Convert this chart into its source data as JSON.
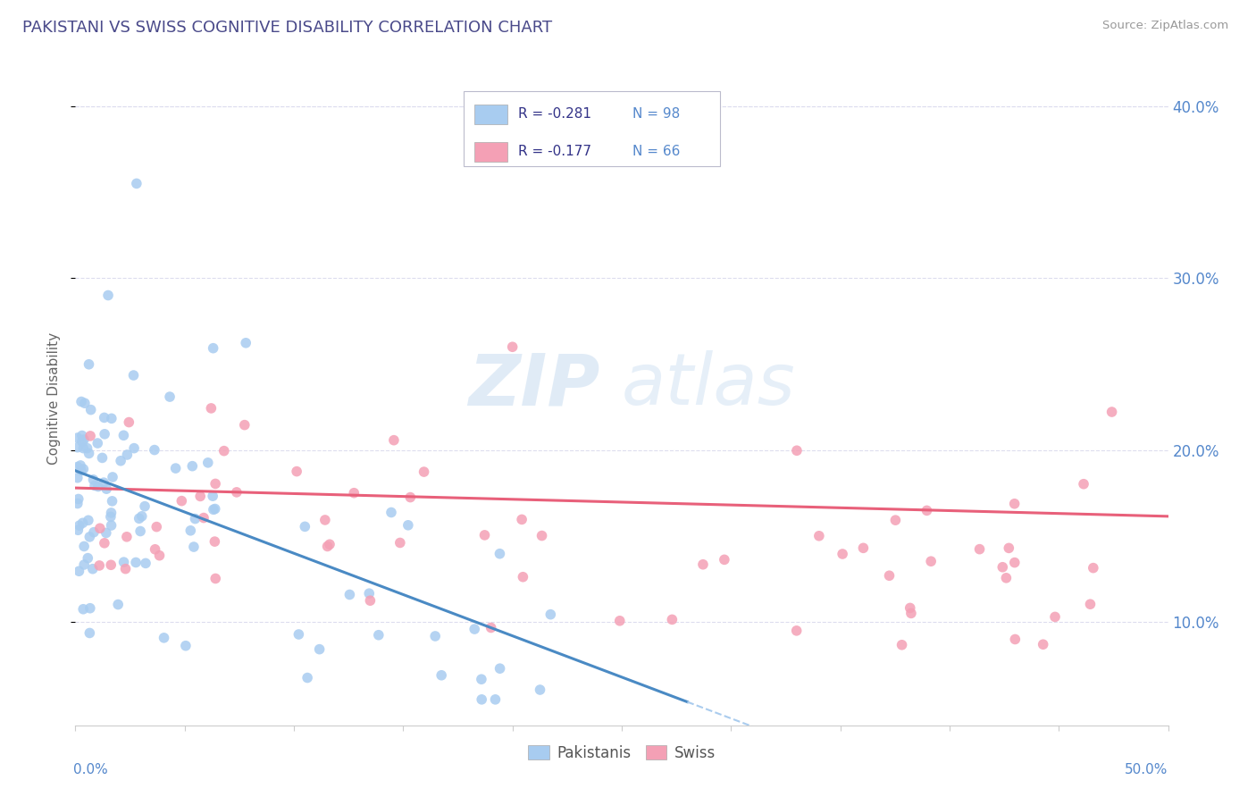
{
  "title": "PAKISTANI VS SWISS COGNITIVE DISABILITY CORRELATION CHART",
  "source": "Source: ZipAtlas.com",
  "ylabel": "Cognitive Disability",
  "r_pakistani": -0.281,
  "n_pakistani": 98,
  "r_swiss": -0.177,
  "n_swiss": 66,
  "xlim": [
    0.0,
    0.5
  ],
  "ylim": [
    0.04,
    0.42
  ],
  "right_yticks": [
    0.1,
    0.2,
    0.3,
    0.4
  ],
  "right_yticklabels": [
    "10.0%",
    "20.0%",
    "30.0%",
    "40.0%"
  ],
  "color_pakistani": "#A8CCF0",
  "color_swiss": "#F4A0B5",
  "color_trend_pakistani": "#4A8AC4",
  "color_trend_swiss": "#E8607A",
  "color_trend_dashed": "#AACCEE",
  "background_color": "#FFFFFF",
  "title_color": "#4A4A8A",
  "source_color": "#999999",
  "watermark_color": "#D5E8F5",
  "legend_label_pakistani": "Pakistanis",
  "legend_label_swiss": "Swiss",
  "legend_text_color": "#333388",
  "legend_n_color": "#5588CC",
  "tick_color": "#5588CC",
  "grid_color": "#DDDDEE",
  "spine_color": "#CCCCCC"
}
